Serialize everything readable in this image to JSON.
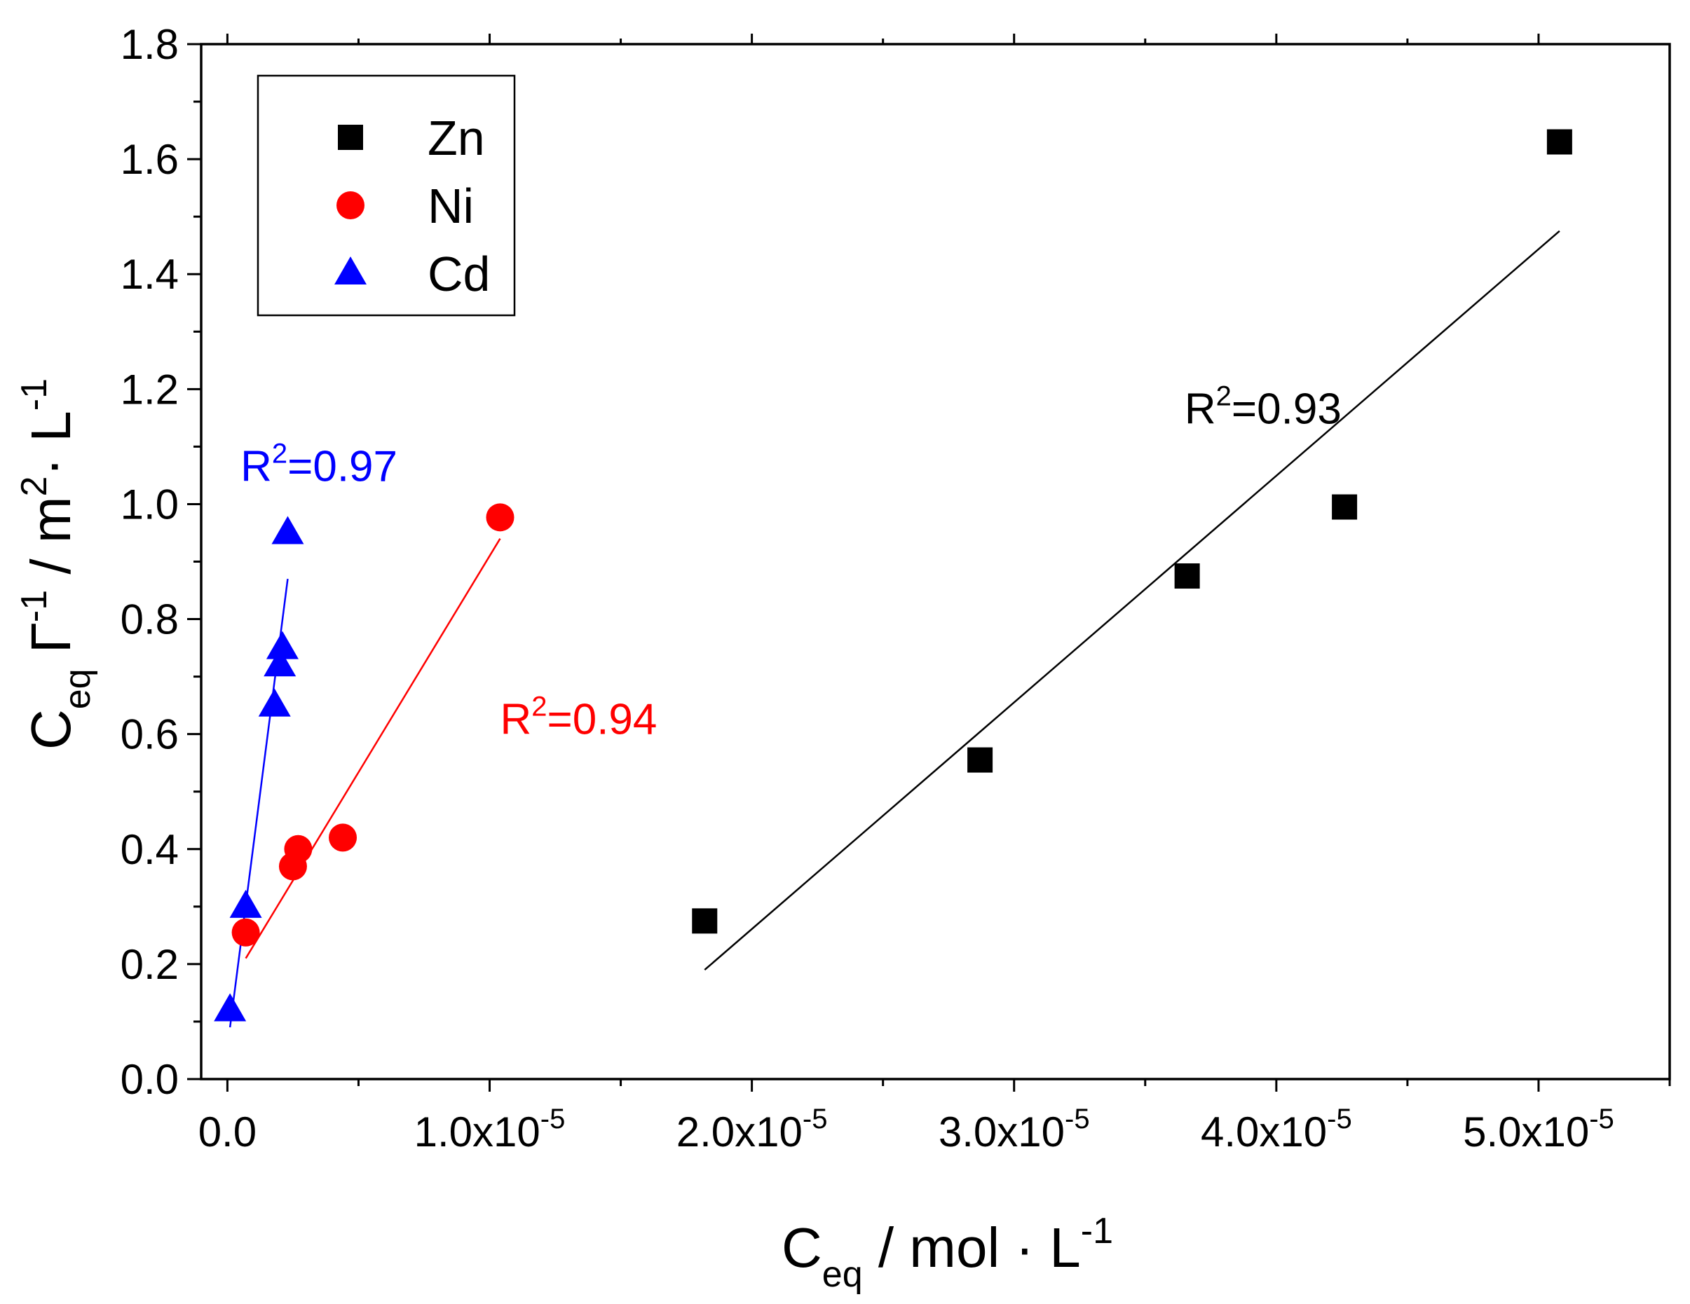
{
  "chart_data": {
    "type": "scatter",
    "title": "",
    "xlabel": {
      "main": "C",
      "sub": "eq",
      "rest": " / mol · L",
      "sup": "-1"
    },
    "ylabel": {
      "main": "C",
      "sub": "eq",
      "gamma": " Γ",
      "sup1": "-1",
      "mid": " / m",
      "sup2": "2",
      "dot": "· L",
      "sup3": "-1"
    },
    "xlim": [
      -1e-06,
      5.5e-05
    ],
    "ylim": [
      0,
      1.8
    ],
    "x_ticks": [
      {
        "value": 0,
        "mant": "0.0",
        "exp": ""
      },
      {
        "value": 1e-05,
        "mant": "1.0x10",
        "exp": "-5"
      },
      {
        "value": 2e-05,
        "mant": "2.0x10",
        "exp": "-5"
      },
      {
        "value": 3e-05,
        "mant": "3.0x10",
        "exp": "-5"
      },
      {
        "value": 4e-05,
        "mant": "4.0x10",
        "exp": "-5"
      },
      {
        "value": 5e-05,
        "mant": "5.0x10",
        "exp": "-5"
      }
    ],
    "y_ticks": [
      "0.0",
      "0.2",
      "0.4",
      "0.6",
      "0.8",
      "1.0",
      "1.2",
      "1.4",
      "1.6",
      "1.8"
    ],
    "legend_position": "top-left",
    "series": [
      {
        "name": "Zn",
        "color": "#000000",
        "marker": "square",
        "points": [
          [
            1.82e-05,
            0.275
          ],
          [
            2.87e-05,
            0.555
          ],
          [
            3.66e-05,
            0.875
          ],
          [
            4.26e-05,
            0.995
          ],
          [
            5.08e-05,
            1.63
          ]
        ],
        "fit": [
          [
            1.82e-05,
            0.19
          ],
          [
            5.08e-05,
            1.475
          ]
        ],
        "r2": {
          "base": "R",
          "sup": "2",
          "val": "=0.93",
          "x": 3.65e-05,
          "y": 1.14
        }
      },
      {
        "name": "Ni",
        "color": "#ff0000",
        "marker": "circle",
        "points": [
          [
            7e-07,
            0.255
          ],
          [
            2.5e-06,
            0.37
          ],
          [
            2.7e-06,
            0.4
          ],
          [
            4.4e-06,
            0.42
          ],
          [
            1.04e-05,
            0.977
          ]
        ],
        "fit": [
          [
            7e-07,
            0.21
          ],
          [
            1.04e-05,
            0.94
          ]
        ],
        "r2": {
          "base": "R",
          "sup": "2",
          "val": "=0.94",
          "x": 1.04e-05,
          "y": 0.6
        }
      },
      {
        "name": "Cd",
        "color": "#0000ff",
        "marker": "triangle",
        "points": [
          [
            1e-07,
            0.12
          ],
          [
            7e-07,
            0.3
          ],
          [
            1.8e-06,
            0.65
          ],
          [
            2e-06,
            0.72
          ],
          [
            2.1e-06,
            0.75
          ],
          [
            2.3e-06,
            0.95
          ]
        ],
        "fit": [
          [
            1e-07,
            0.09
          ],
          [
            2.3e-06,
            0.87
          ]
        ],
        "r2": {
          "base": "R",
          "sup": "2",
          "val": "=0.97",
          "x": 5e-07,
          "y": 1.04
        }
      }
    ]
  }
}
